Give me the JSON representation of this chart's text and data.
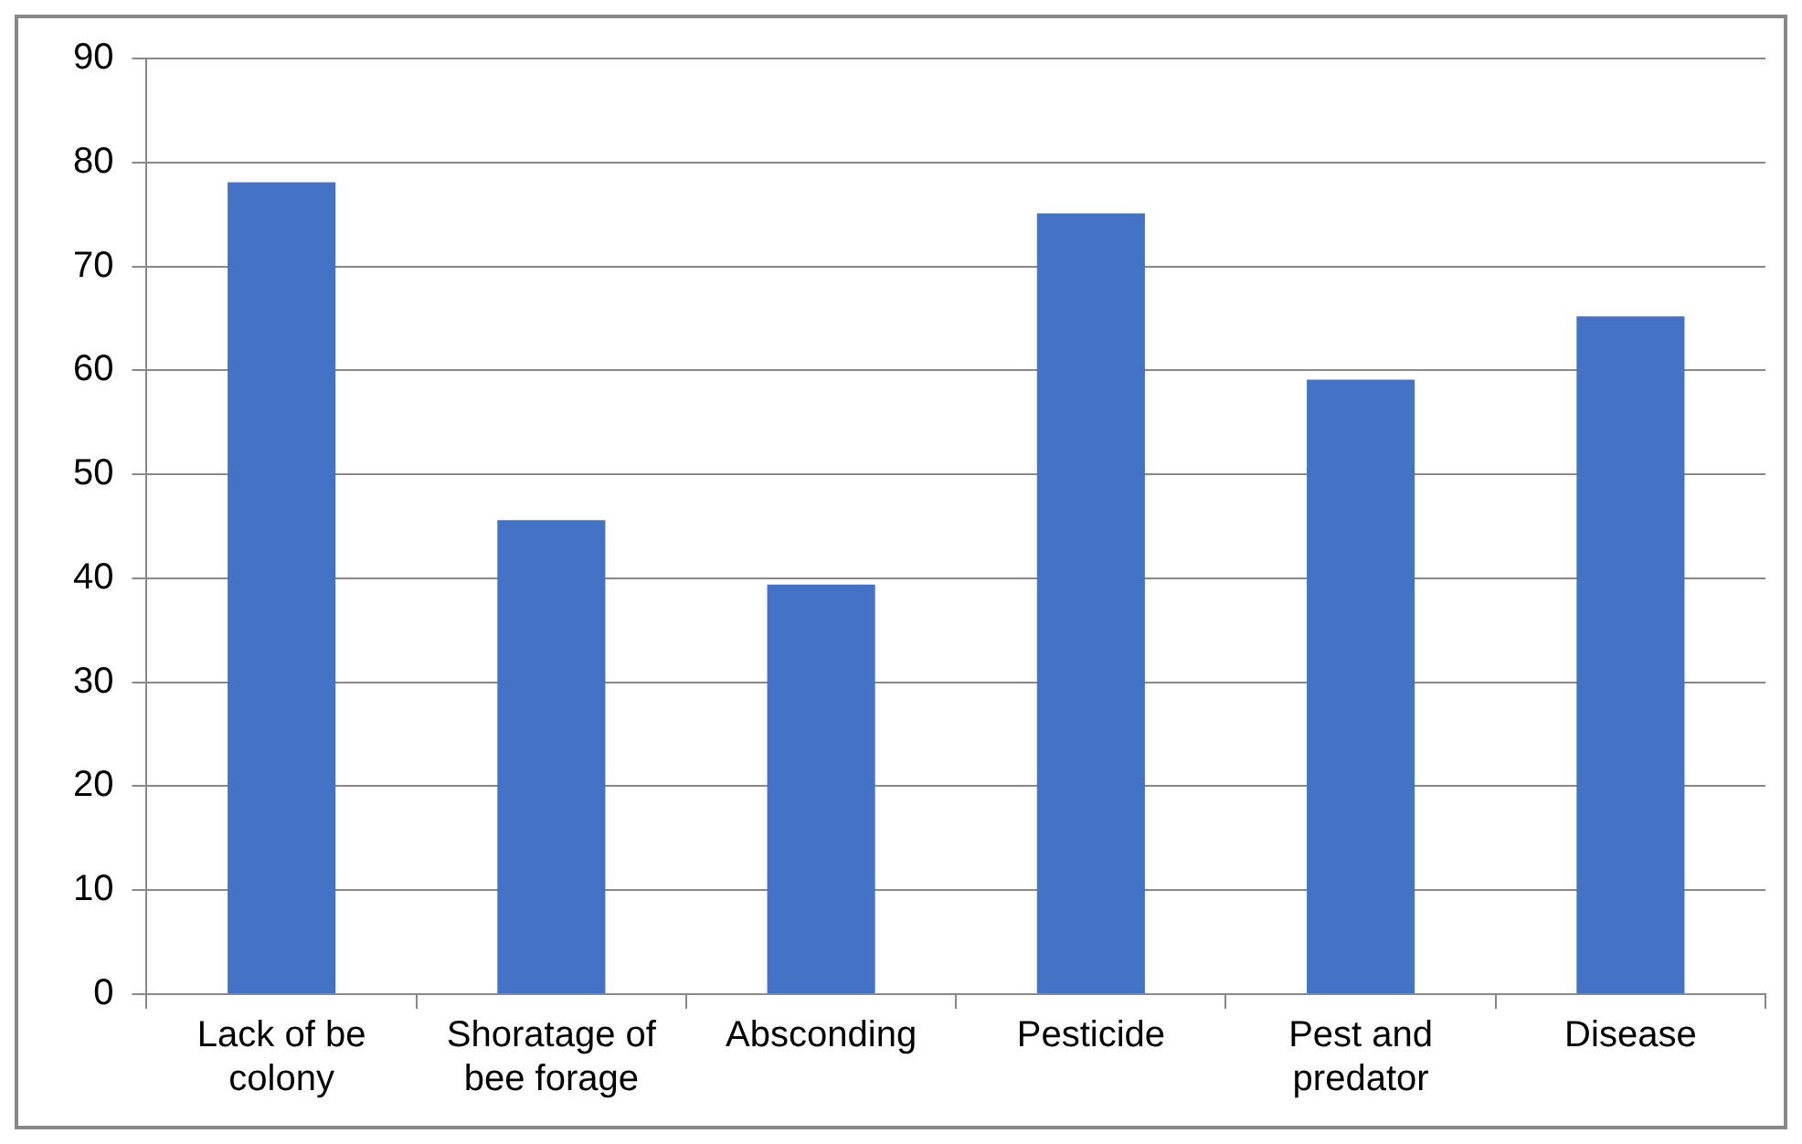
{
  "chart_data": {
    "type": "bar",
    "categories": [
      "Lack of be colony",
      "Shoratage of bee forage",
      "Absconding",
      "Pesticide",
      "Pest and predator",
      "Disease"
    ],
    "values": [
      78.1,
      45.6,
      39.4,
      75.1,
      59.1,
      65.2
    ],
    "color": "#4472c4",
    "ylim": [
      0,
      90
    ],
    "yticks": [
      0,
      10,
      20,
      30,
      40,
      50,
      60,
      70,
      80,
      90
    ],
    "grid": "y",
    "legend": false
  }
}
